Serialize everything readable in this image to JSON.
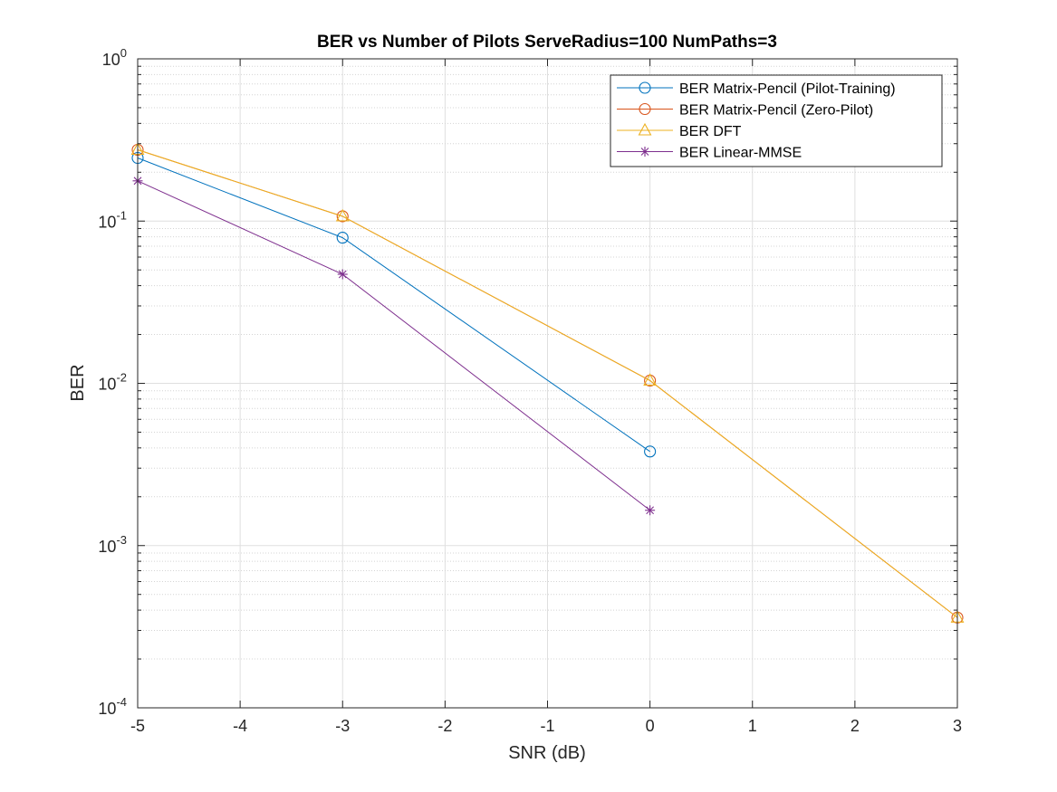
{
  "chart_data": {
    "type": "line",
    "title": "BER vs Number of Pilots ServeRadius=100 NumPaths=3",
    "xlabel": "SNR (dB)",
    "ylabel": "BER",
    "xlim": [
      -5,
      3
    ],
    "ylim": [
      0.0001,
      1
    ],
    "yscale": "log",
    "grid": true,
    "legend_position": "top-right",
    "xticks": [
      -5,
      -4,
      -3,
      -2,
      -1,
      0,
      1,
      2,
      3
    ],
    "xtick_labels": [
      "-5",
      "-4",
      "-3",
      "-2",
      "-1",
      "0",
      "1",
      "2",
      "3"
    ],
    "yticks": [
      {
        "value": 0.0001,
        "base": "10",
        "exp": "-4"
      },
      {
        "value": 0.001,
        "base": "10",
        "exp": "-3"
      },
      {
        "value": 0.01,
        "base": "10",
        "exp": "-2"
      },
      {
        "value": 0.1,
        "base": "10",
        "exp": "-1"
      },
      {
        "value": 1,
        "base": "10",
        "exp": "0"
      }
    ],
    "series": [
      {
        "name": "BER Matrix-Pencil (Pilot-Training)",
        "color": "#0072BD",
        "marker": "circle",
        "x": [
          -5,
          -3,
          0
        ],
        "y": [
          0.245,
          0.079,
          0.0038
        ]
      },
      {
        "name": "BER Matrix-Pencil (Zero-Pilot)",
        "color": "#D95319",
        "marker": "circle",
        "x": [
          -5,
          -3,
          0,
          3
        ],
        "y": [
          0.275,
          0.107,
          0.0104,
          0.00036
        ]
      },
      {
        "name": "BER DFT",
        "color": "#EDB120",
        "marker": "triangle",
        "x": [
          -5,
          -3,
          0,
          3
        ],
        "y": [
          0.275,
          0.107,
          0.0104,
          0.00036
        ]
      },
      {
        "name": "BER Linear-MMSE",
        "color": "#7E2F8E",
        "marker": "asterisk",
        "x": [
          -5,
          -3,
          0
        ],
        "y": [
          0.177,
          0.047,
          0.00165
        ]
      }
    ]
  }
}
